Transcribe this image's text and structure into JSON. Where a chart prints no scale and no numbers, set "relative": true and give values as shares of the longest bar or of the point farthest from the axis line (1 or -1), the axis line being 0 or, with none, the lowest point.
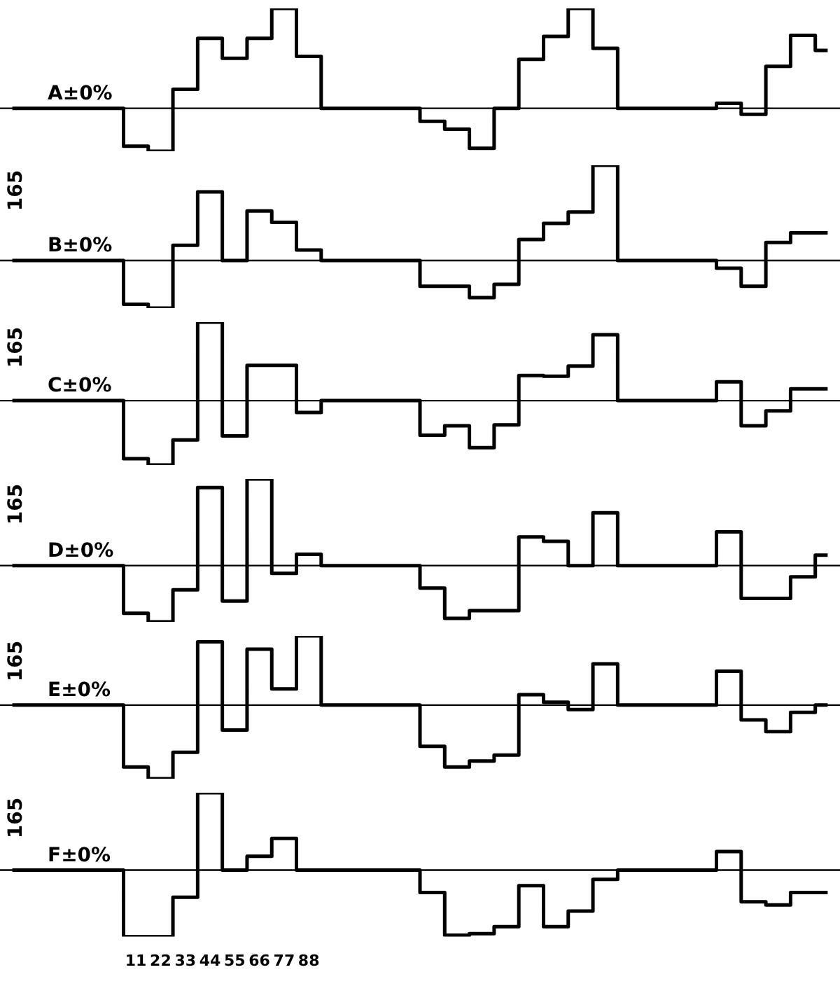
{
  "chart_data": [
    {
      "type": "step",
      "relative": true,
      "marker": "none",
      "color": "#000000",
      "categories": [
        null,
        null,
        null,
        null,
        null,
        null,
        null,
        null,
        null,
        null,
        null,
        null,
        null,
        null,
        null,
        null,
        null,
        null,
        null,
        null,
        null,
        null,
        null,
        null,
        null,
        null,
        null,
        null,
        null,
        null,
        null,
        null,
        null,
        null
      ],
      "values": [
        0,
        0,
        0,
        0,
        0,
        -0.38,
        -0.43,
        0.19,
        0.7,
        0.5,
        0.7,
        1,
        0.52,
        0,
        0,
        0,
        0,
        -0.13,
        -0.21,
        -0.4,
        0,
        0.49,
        0.72,
        1,
        0.6,
        0,
        0,
        0,
        0,
        0.05,
        -0.06,
        0.42,
        0.73,
        0.58
      ],
      "ref_lines": [
        {
          "axis": "y",
          "value": 0,
          "label": "A±0%"
        }
      ]
    },
    {
      "type": "step",
      "relative": true,
      "marker": "none",
      "color": "#000000",
      "categories": [
        null,
        null,
        null,
        null,
        null,
        null,
        null,
        null,
        null,
        null,
        null,
        null,
        null,
        null,
        null,
        null,
        null,
        null,
        null,
        null,
        null,
        null,
        null,
        null,
        null,
        null,
        null,
        null,
        null,
        null,
        null,
        null,
        null,
        null
      ],
      "values": [
        0,
        0,
        0,
        0,
        0,
        -0.46,
        -0.5,
        0.16,
        0.72,
        0,
        0.52,
        0.4,
        0.11,
        0,
        0,
        0,
        0,
        -0.27,
        -0.27,
        -0.39,
        -0.25,
        0.22,
        0.39,
        0.51,
        1,
        0,
        0,
        0,
        0,
        -0.08,
        -0.27,
        0.19,
        0.29,
        0.29
      ],
      "ref_lines": [
        {
          "axis": "y",
          "value": 0,
          "label": "B±0%"
        }
      ],
      "annotations": [
        "165"
      ]
    },
    {
      "type": "step",
      "relative": true,
      "marker": "none",
      "color": "#000000",
      "categories": [
        null,
        null,
        null,
        null,
        null,
        null,
        null,
        null,
        null,
        null,
        null,
        null,
        null,
        null,
        null,
        null,
        null,
        null,
        null,
        null,
        null,
        null,
        null,
        null,
        null,
        null,
        null,
        null,
        null,
        null,
        null,
        null,
        null,
        null
      ],
      "values": [
        0,
        0,
        0,
        0,
        0,
        -0.74,
        -0.82,
        -0.5,
        1,
        -0.45,
        0.45,
        0.45,
        -0.15,
        0,
        0,
        0,
        0,
        -0.44,
        -0.32,
        -0.6,
        -0.31,
        0.32,
        0.31,
        0.44,
        0.84,
        0,
        0,
        0,
        0,
        0.24,
        -0.32,
        -0.13,
        0.15,
        0.15
      ],
      "ref_lines": [
        {
          "axis": "y",
          "value": 0,
          "label": "C±0%"
        }
      ],
      "annotations": [
        "165"
      ]
    },
    {
      "type": "step",
      "relative": true,
      "marker": "none",
      "color": "#000000",
      "categories": [
        null,
        null,
        null,
        null,
        null,
        null,
        null,
        null,
        null,
        null,
        null,
        null,
        null,
        null,
        null,
        null,
        null,
        null,
        null,
        null,
        null,
        null,
        null,
        null,
        null,
        null,
        null,
        null,
        null,
        null,
        null,
        null,
        null,
        null
      ],
      "values": [
        0,
        0,
        0,
        0,
        0,
        -0.55,
        -0.65,
        -0.28,
        0.9,
        -0.41,
        1,
        -0.09,
        0.13,
        0,
        0,
        0,
        0,
        -0.26,
        -0.61,
        -0.52,
        -0.52,
        0.33,
        0.28,
        0,
        0.61,
        0,
        0,
        0,
        0,
        0.39,
        -0.38,
        -0.38,
        -0.13,
        0.12
      ],
      "ref_lines": [
        {
          "axis": "y",
          "value": 0,
          "label": "D±0%"
        }
      ],
      "annotations": [
        "165"
      ]
    },
    {
      "type": "step",
      "relative": true,
      "marker": "none",
      "color": "#000000",
      "categories": [
        null,
        null,
        null,
        null,
        null,
        null,
        null,
        null,
        null,
        null,
        null,
        null,
        null,
        null,
        null,
        null,
        null,
        null,
        null,
        null,
        null,
        null,
        null,
        null,
        null,
        null,
        null,
        null,
        null,
        null,
        null,
        null,
        null,
        null
      ],
      "values": [
        0,
        0,
        0,
        0,
        0,
        -0.84,
        -1,
        -0.64,
        0.86,
        -0.34,
        0.76,
        0.22,
        0.94,
        0,
        0,
        0,
        0,
        -0.56,
        -0.84,
        -0.76,
        -0.68,
        0.14,
        0.04,
        -0.06,
        0.56,
        0,
        0,
        0,
        0,
        0.46,
        -0.2,
        -0.36,
        -0.1,
        0
      ],
      "ref_lines": [
        {
          "axis": "y",
          "value": 0,
          "label": "E±0%"
        }
      ],
      "annotations": [
        "165"
      ]
    },
    {
      "type": "step",
      "relative": true,
      "marker": "none",
      "color": "#000000",
      "categories": [
        null,
        null,
        null,
        null,
        null,
        "11",
        "22",
        "33",
        "44",
        "55",
        "66",
        "77",
        "88",
        null,
        null,
        null,
        null,
        null,
        null,
        null,
        null,
        null,
        null,
        null,
        null,
        null,
        null,
        null,
        null,
        null,
        null,
        null,
        null,
        null
      ],
      "values": [
        0,
        0,
        0,
        0,
        0,
        -0.86,
        -0.86,
        -0.35,
        1,
        0,
        0.18,
        0.41,
        0,
        0,
        0,
        0,
        0,
        -0.29,
        -0.84,
        -0.82,
        -0.73,
        -0.2,
        -0.73,
        -0.53,
        -0.12,
        0,
        0,
        0,
        0,
        0.24,
        -0.41,
        -0.45,
        -0.29,
        -0.29
      ],
      "ref_lines": [
        {
          "axis": "y",
          "value": 0,
          "label": "F±0%"
        }
      ],
      "annotations": [
        "165"
      ]
    }
  ]
}
